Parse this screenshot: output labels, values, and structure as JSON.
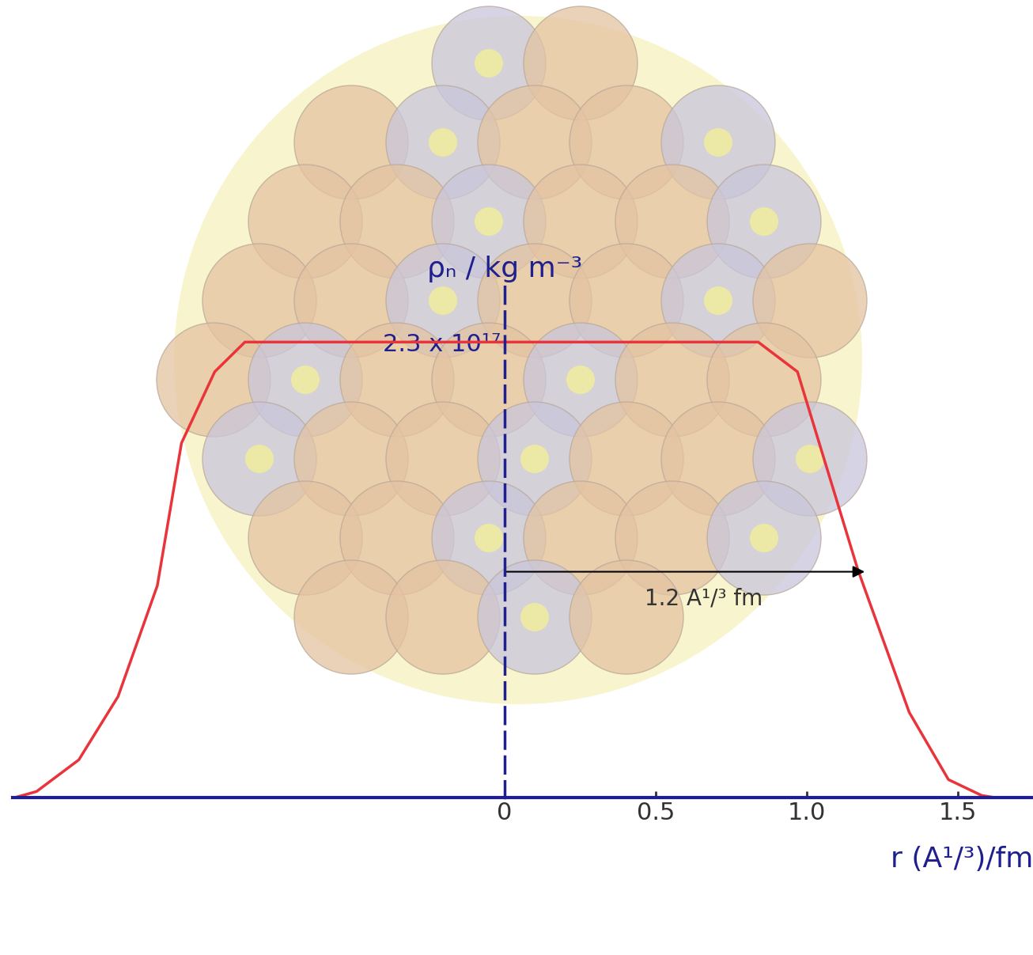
{
  "chart_data": {
    "type": "line",
    "y_label": "ρₙ / kg m⁻³",
    "x_label": "r (A¹/³)/fm",
    "x": [
      -1.62,
      -1.55,
      -1.41,
      -1.28,
      -1.15,
      -1.07,
      -0.96,
      -0.86,
      0.0,
      0.84,
      0.97,
      1.17,
      1.34,
      1.47,
      1.58,
      1.62
    ],
    "values": [
      0.0,
      3000000000000000.0,
      1.9e+16,
      5.1e+16,
      1.07e+17,
      1.79e+17,
      2.15e+17,
      2.3e+17,
      2.3e+17,
      2.3e+17,
      2.15e+17,
      1.15e+17,
      4.3e+16,
      9000000000000000.0,
      1000000000000000.0,
      0.0
    ],
    "color": "#e8343a",
    "xlim": [
      -1.63,
      1.75
    ],
    "ylim": [
      0,
      2.6e+17
    ],
    "xticks": [
      0,
      0.5,
      {
        "value": 1,
        "label": "1.0"
      },
      1.5
    ],
    "yticks": [
      {
        "value": 2.3e+17,
        "label": "2.3 x 10¹⁷"
      }
    ],
    "arrow": {
      "text": "1.2 A¹/³ fm",
      "x": [
        0,
        1.2
      ],
      "y": 1.14e+17
    }
  }
}
